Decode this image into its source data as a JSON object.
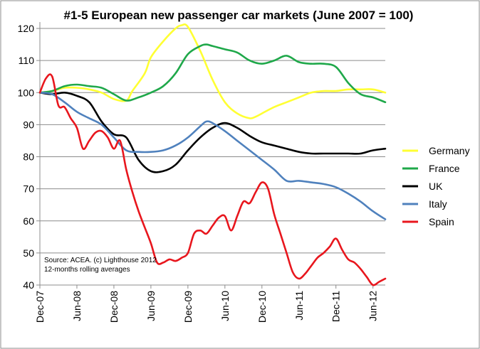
{
  "chart_data": {
    "type": "line",
    "title": "#1-5 European new passenger car markets (June 2007 = 100)",
    "xlabel": "",
    "ylabel": "",
    "ylim": [
      40,
      122
    ],
    "yticks": [
      40,
      50,
      60,
      70,
      80,
      90,
      100,
      110,
      120
    ],
    "xlim": [
      0,
      56
    ],
    "xticks": [
      {
        "label": "Dec-07",
        "x": 0
      },
      {
        "label": "Jun-08",
        "x": 6
      },
      {
        "label": "Dec-08",
        "x": 12
      },
      {
        "label": "Jun-09",
        "x": 18
      },
      {
        "label": "Dec-09",
        "x": 24
      },
      {
        "label": "Jun-10",
        "x": 30
      },
      {
        "label": "Dec-10",
        "x": 36
      },
      {
        "label": "Jun-11",
        "x": 42
      },
      {
        "label": "Dec-11",
        "x": 48
      },
      {
        "label": "Jun-12",
        "x": 54
      }
    ],
    "grid": "horizontal",
    "legend_position": "right",
    "annotation": [
      "Source: ACEA. (c) Lighthouse 2012",
      "12-months rolling averages"
    ],
    "series": [
      {
        "name": "Germany",
        "color": "#ffff33",
        "x": [
          0,
          2,
          4,
          6,
          8,
          10,
          12,
          14,
          15,
          17,
          18,
          20,
          22,
          23,
          24,
          26,
          28,
          30,
          32,
          34,
          35,
          36,
          38,
          40,
          42,
          44,
          46,
          48,
          50,
          52,
          54,
          56
        ],
        "y": [
          100,
          100.5,
          101.5,
          101.5,
          101,
          100,
          98,
          97.5,
          100.5,
          106,
          111,
          116,
          120,
          121,
          120.5,
          113,
          104,
          97,
          93.5,
          92,
          92.5,
          93.5,
          95.5,
          97,
          98.5,
          100,
          100.5,
          100.5,
          101,
          101,
          101,
          100
        ]
      },
      {
        "name": "France",
        "color": "#1fa84a",
        "x": [
          0,
          2,
          4,
          6,
          8,
          10,
          12,
          14,
          16,
          18,
          20,
          22,
          24,
          26,
          27,
          28,
          30,
          32,
          34,
          36,
          38,
          40,
          42,
          44,
          46,
          48,
          50,
          52,
          54,
          56
        ],
        "y": [
          100,
          100.5,
          102,
          102.5,
          102,
          101.5,
          99.5,
          97.5,
          98.5,
          100,
          102,
          106,
          112,
          114.5,
          115,
          114.5,
          113.5,
          112.5,
          110,
          109,
          110,
          111.5,
          109.5,
          109,
          109,
          108,
          103,
          99.5,
          98.5,
          97
        ]
      },
      {
        "name": "UK",
        "color": "#000000",
        "x": [
          0,
          2,
          4,
          6,
          8,
          10,
          12,
          14,
          16,
          18,
          20,
          22,
          24,
          26,
          28,
          30,
          32,
          34,
          36,
          38,
          40,
          42,
          44,
          46,
          48,
          50,
          52,
          54,
          56
        ],
        "y": [
          100,
          99.5,
          100,
          99,
          97,
          91,
          87,
          86,
          79,
          75.5,
          75.5,
          77.5,
          82,
          86,
          89,
          90.5,
          89,
          86.5,
          84.5,
          83.5,
          82.5,
          81.5,
          81,
          81,
          81,
          81,
          81,
          82,
          82.5
        ]
      },
      {
        "name": "Italy",
        "color": "#4f81bd",
        "x": [
          0,
          2,
          4,
          6,
          8,
          10,
          12,
          14,
          16,
          18,
          20,
          22,
          24,
          26,
          27,
          28,
          30,
          32,
          34,
          36,
          38,
          40,
          42,
          44,
          46,
          48,
          50,
          52,
          54,
          56
        ],
        "y": [
          100,
          99.5,
          97,
          94,
          92,
          90,
          86,
          82,
          81.5,
          81.5,
          82,
          83.5,
          86,
          89.5,
          91,
          90.5,
          88,
          85,
          82,
          79,
          76,
          72.5,
          72.5,
          72,
          71.5,
          70.5,
          68.5,
          66,
          63,
          60.5
        ]
      },
      {
        "name": "Spain",
        "color": "#e8161d",
        "x": [
          0,
          1,
          2,
          3,
          4,
          5,
          6,
          7,
          8,
          9,
          10,
          11,
          12,
          13,
          14,
          15,
          16,
          17,
          18,
          19,
          20,
          21,
          22,
          23,
          24,
          25,
          26,
          27,
          28,
          29,
          30,
          31,
          32,
          33,
          34,
          35,
          36,
          37,
          38,
          39,
          40,
          41,
          42,
          43,
          44,
          45,
          46,
          47,
          48,
          49,
          50,
          51,
          52,
          53,
          54,
          55,
          56
        ],
        "y": [
          100,
          104.5,
          105,
          96,
          95.5,
          92,
          89,
          82.5,
          85,
          87.5,
          88,
          86,
          82.5,
          85,
          76,
          69,
          63,
          58,
          53,
          47,
          47,
          48,
          47.5,
          48.5,
          50,
          56,
          57,
          56,
          58.5,
          61,
          61.5,
          57,
          61.5,
          66,
          65.5,
          69,
          72,
          70,
          62,
          56,
          50,
          44,
          42,
          43.5,
          46,
          48.5,
          50,
          52,
          54.5,
          51,
          48,
          47,
          45,
          42.5,
          40,
          41,
          42
        ]
      }
    ]
  }
}
